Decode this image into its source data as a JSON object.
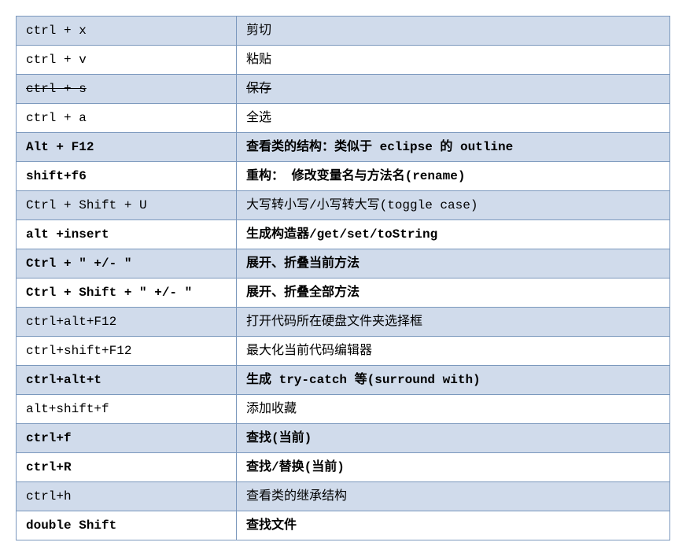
{
  "table": {
    "border_color": "#7b98bd",
    "row_bg_even": "#d0dbeb",
    "row_bg_odd": "#ffffff",
    "font_size": 16,
    "col_key_width": 280,
    "rows": [
      {
        "key": "ctrl + x",
        "desc": "剪切",
        "bold": false,
        "strike": false
      },
      {
        "key": "ctrl + v",
        "desc": "粘贴",
        "bold": false,
        "strike": false
      },
      {
        "key": "ctrl + s",
        "desc": "保存",
        "bold": false,
        "strike": true
      },
      {
        "key": "ctrl + a",
        "desc": "全选",
        "bold": false,
        "strike": false
      },
      {
        "key": "Alt + F12",
        "desc": "查看类的结构：类似于 eclipse 的 outline",
        "bold": true,
        "strike": false
      },
      {
        "key": "shift+f6",
        "desc": "重构：  修改变量名与方法名(rename)",
        "bold": true,
        "strike": false
      },
      {
        "key": "Ctrl + Shift + U",
        "desc": "大写转小写/小写转大写(toggle case)",
        "bold": false,
        "strike": false
      },
      {
        "key": "alt +insert",
        "desc": "生成构造器/get/set/toString",
        "bold": true,
        "strike": false
      },
      {
        "key": "Ctrl + \" +/- \"",
        "desc": "展开、折叠当前方法",
        "bold": true,
        "strike": false
      },
      {
        "key": "Ctrl + Shift + \" +/- \"",
        "desc": "展开、折叠全部方法",
        "bold": true,
        "strike": false
      },
      {
        "key": "ctrl+alt+F12",
        "desc": "打开代码所在硬盘文件夹选择框",
        "bold": false,
        "strike": false
      },
      {
        "key": "ctrl+shift+F12",
        "desc": "最大化当前代码编辑器",
        "bold": false,
        "strike": false
      },
      {
        "key": "ctrl+alt+t",
        "desc": "生成 try-catch 等(surround with)",
        "bold": true,
        "strike": false
      },
      {
        "key": "alt+shift+f",
        "desc": "添加收藏",
        "bold": false,
        "strike": false
      },
      {
        "key": "ctrl+f",
        "desc": "查找(当前)",
        "bold": true,
        "strike": false
      },
      {
        "key": "ctrl+R",
        "desc": "查找/替换(当前)",
        "bold": true,
        "strike": false
      },
      {
        "key": "ctrl+h",
        "desc": "查看类的继承结构",
        "bold": false,
        "strike": false
      },
      {
        "key": "double Shift",
        "desc": "查找文件",
        "bold": true,
        "strike": false
      }
    ]
  }
}
